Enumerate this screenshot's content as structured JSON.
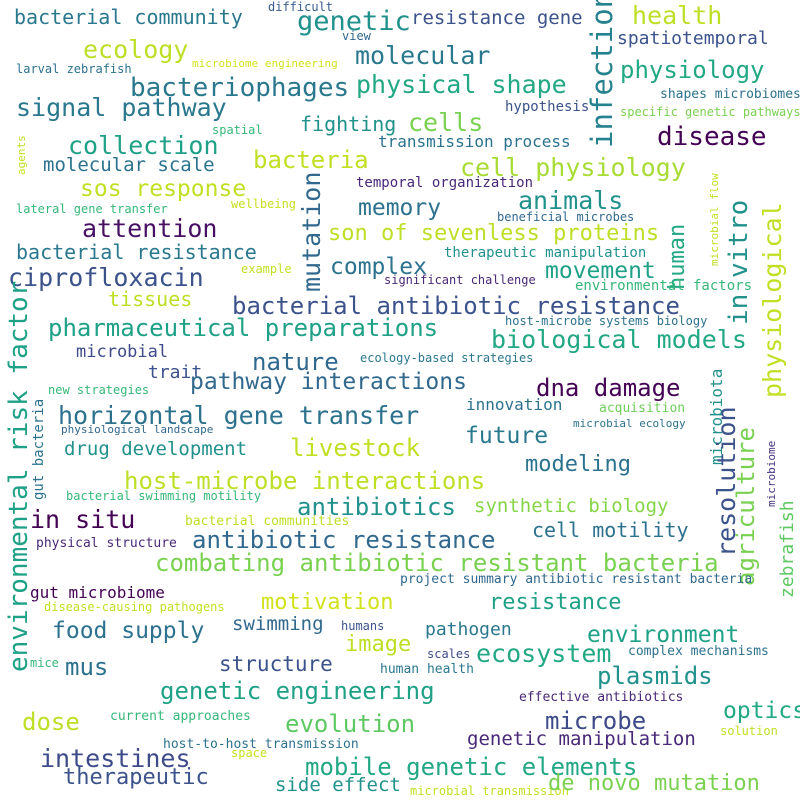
{
  "words": [
    {
      "text": "bacterial community",
      "color": "#2a788e"
    },
    {
      "text": "difficult",
      "color": "#365c8d"
    },
    {
      "text": "genetic",
      "color": "#21918c"
    },
    {
      "text": "resistance gene",
      "color": "#3b528b"
    },
    {
      "text": "infection",
      "color": "#26828e"
    },
    {
      "text": "health",
      "color": "#bddf26"
    },
    {
      "text": "ecology",
      "color": "#bddf26"
    },
    {
      "text": "microbiome engineering",
      "color": "#d2e21b"
    },
    {
      "text": "view",
      "color": "#31688e"
    },
    {
      "text": "molecular",
      "color": "#2a788e"
    },
    {
      "text": "spatiotemporal",
      "color": "#3b528b"
    },
    {
      "text": "larval zebrafish",
      "color": "#2c728e"
    },
    {
      "text": "physical shape",
      "color": "#22a884"
    },
    {
      "text": "physiology",
      "color": "#22a884"
    },
    {
      "text": "bacteriophages",
      "color": "#2a788e"
    },
    {
      "text": "shapes microbiomes",
      "color": "#2c728e"
    },
    {
      "text": "signal pathway",
      "color": "#2a788e"
    },
    {
      "text": "hypothesis",
      "color": "#3b528b"
    },
    {
      "text": "specific genetic pathways",
      "color": "#7ad151"
    },
    {
      "text": "cells",
      "color": "#7ad151"
    },
    {
      "text": "fighting",
      "color": "#21918c"
    },
    {
      "text": "spatial",
      "color": "#35b779"
    },
    {
      "text": "collection",
      "color": "#1fa187"
    },
    {
      "text": "transmission process",
      "color": "#2c728e"
    },
    {
      "text": "disease",
      "color": "#440154"
    },
    {
      "text": "agents",
      "color": "#c2df23"
    },
    {
      "text": "molecular scale",
      "color": "#2c728e"
    },
    {
      "text": "bacteria",
      "color": "#c2df23"
    },
    {
      "text": "cell physiology",
      "color": "#a8db34"
    },
    {
      "text": "mutation",
      "color": "#31688e"
    },
    {
      "text": "temporal organization",
      "color": "#482878"
    },
    {
      "text": "sos response",
      "color": "#c2df23"
    },
    {
      "text": "lateral gene transfer",
      "color": "#35b779"
    },
    {
      "text": "wellbeing",
      "color": "#c8e020"
    },
    {
      "text": "memory",
      "color": "#2c728e"
    },
    {
      "text": "animals",
      "color": "#21918c"
    },
    {
      "text": "beneficial microbes",
      "color": "#31688e"
    },
    {
      "text": "microbial flow",
      "color": "#c2df23"
    },
    {
      "text": "physiological",
      "color": "#c2df23"
    },
    {
      "text": "attention",
      "color": "#471063"
    },
    {
      "text": "son of sevenless proteins",
      "color": "#bddf26"
    },
    {
      "text": "human",
      "color": "#22a884"
    },
    {
      "text": "in vitro",
      "color": "#21918c"
    },
    {
      "text": "bacterial resistance",
      "color": "#2a788e"
    },
    {
      "text": "therapeutic manipulation",
      "color": "#21918c"
    },
    {
      "text": "ciprofloxacin",
      "color": "#3b528b"
    },
    {
      "text": "example",
      "color": "#c2df23"
    },
    {
      "text": "complex",
      "color": "#2c728e"
    },
    {
      "text": "significant challenge",
      "color": "#482878"
    },
    {
      "text": "movement",
      "color": "#1fa187"
    },
    {
      "text": "environmental factors",
      "color": "#35b779"
    },
    {
      "text": "tissues",
      "color": "#bddf26"
    },
    {
      "text": "bacterial antibiotic resistance",
      "color": "#3b528b"
    },
    {
      "text": "environmental risk factor",
      "color": "#1fa187"
    },
    {
      "text": "host-microbe systems biology",
      "color": "#2c728e"
    },
    {
      "text": "pharmaceutical preparations",
      "color": "#1fa187"
    },
    {
      "text": "biological models",
      "color": "#22a884"
    },
    {
      "text": "gut bacteria",
      "color": "#2c728e"
    },
    {
      "text": "microbial",
      "color": "#3e4a89"
    },
    {
      "text": "nature",
      "color": "#31688e"
    },
    {
      "text": "ecology-based strategies",
      "color": "#2a788e"
    },
    {
      "text": "microbiota",
      "color": "#21918c"
    },
    {
      "text": "trait",
      "color": "#3b528b"
    },
    {
      "text": "new strategies",
      "color": "#35b779"
    },
    {
      "text": "pathway interactions",
      "color": "#31688e"
    },
    {
      "text": "dna damage",
      "color": "#440154"
    },
    {
      "text": "resolution",
      "color": "#3b528b"
    },
    {
      "text": "agriculture",
      "color": "#7ad151"
    },
    {
      "text": "innovation",
      "color": "#2c728e"
    },
    {
      "text": "acquisition",
      "color": "#6ece58"
    },
    {
      "text": "horizontal gene transfer",
      "color": "#2c728e"
    },
    {
      "text": "physiological landscape",
      "color": "#31688e"
    },
    {
      "text": "microbial ecology",
      "color": "#2c728e"
    },
    {
      "text": "future",
      "color": "#2a788e"
    },
    {
      "text": "drug development",
      "color": "#21918c"
    },
    {
      "text": "livestock",
      "color": "#c2df23"
    },
    {
      "text": "modeling",
      "color": "#2c728e"
    },
    {
      "text": "zebrafish",
      "color": "#5ec962"
    },
    {
      "text": "microbiome",
      "color": "#46337e"
    },
    {
      "text": "host-microbe interactions",
      "color": "#bddf26"
    },
    {
      "text": "bacterial swimming motility",
      "color": "#35b779"
    },
    {
      "text": "antibiotics",
      "color": "#21918c"
    },
    {
      "text": "synthetic biology",
      "color": "#86d549"
    },
    {
      "text": "in situ",
      "color": "#440154"
    },
    {
      "text": "bacterial communities",
      "color": "#bddf26"
    },
    {
      "text": "cell motility",
      "color": "#2c728e"
    },
    {
      "text": "physical structure",
      "color": "#482878"
    },
    {
      "text": "antibiotic resistance",
      "color": "#31688e"
    },
    {
      "text": "combating antibiotic resistant bacteria",
      "color": "#7ad151"
    },
    {
      "text": "project summary antibiotic resistant bacteria",
      "color": "#31688e"
    },
    {
      "text": "gut microbiome",
      "color": "#440154"
    },
    {
      "text": "disease-causing pathogens",
      "color": "#c2df23"
    },
    {
      "text": "motivation",
      "color": "#d2e21b"
    },
    {
      "text": "resistance",
      "color": "#1fa187"
    },
    {
      "text": "food supply",
      "color": "#2c728e"
    },
    {
      "text": "swimming",
      "color": "#31688e"
    },
    {
      "text": "humans",
      "color": "#3b528b"
    },
    {
      "text": "image",
      "color": "#bddf26"
    },
    {
      "text": "pathogen",
      "color": "#2a788e"
    },
    {
      "text": "environment",
      "color": "#1fa187"
    },
    {
      "text": "mice",
      "color": "#35b779"
    },
    {
      "text": "mus",
      "color": "#2c728e"
    },
    {
      "text": "structure",
      "color": "#3b528b"
    },
    {
      "text": "scales",
      "color": "#3e4a89"
    },
    {
      "text": "ecosystem",
      "color": "#22a884"
    },
    {
      "text": "complex mechanisms",
      "color": "#2c728e"
    },
    {
      "text": "human health",
      "color": "#2a788e"
    },
    {
      "text": "plasmids",
      "color": "#21918c"
    },
    {
      "text": "genetic engineering",
      "color": "#1fa187"
    },
    {
      "text": "effective antibiotics",
      "color": "#482878"
    },
    {
      "text": "optics",
      "color": "#22a884"
    },
    {
      "text": "dose",
      "color": "#bddf26"
    },
    {
      "text": "current approaches",
      "color": "#35b779"
    },
    {
      "text": "evolution",
      "color": "#5ec962"
    },
    {
      "text": "microbe",
      "color": "#3e4a89"
    },
    {
      "text": "solution",
      "color": "#c2df23"
    },
    {
      "text": "host-to-host transmission",
      "color": "#2c728e"
    },
    {
      "text": "genetic manipulation",
      "color": "#482878"
    },
    {
      "text": "intestines",
      "color": "#3e4a89"
    },
    {
      "text": "space",
      "color": "#c8e020"
    },
    {
      "text": "mobile genetic elements",
      "color": "#22a884"
    },
    {
      "text": "therapeutic",
      "color": "#3b528b"
    },
    {
      "text": "side effect",
      "color": "#21918c"
    },
    {
      "text": "microbial transmission",
      "color": "#c2df23"
    },
    {
      "text": "de novo mutation",
      "color": "#7ad151"
    }
  ]
}
